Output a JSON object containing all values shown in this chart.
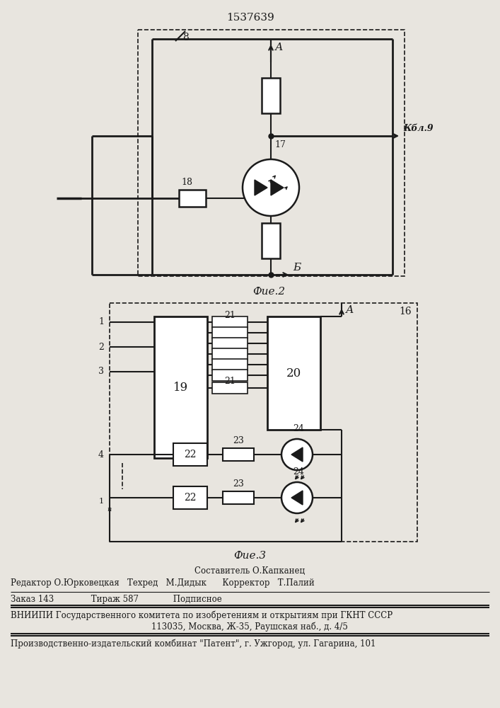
{
  "title": "1537639",
  "fig2_label": "Фие.2",
  "fig3_label": "Фие.3",
  "bg_color": "#e8e5df",
  "line_color": "#1a1a1a",
  "footer_lines": [
    "Составитель О.Капканец",
    "Редактор О.Юрковецкая   Техред   М.Дидык      Корректор   Т.Палий",
    "Заказ 143              Тираж 587             Подписное",
    "ВНИИПИ Государственного комитета по изобретениям и открытиям при ГКНТ СССР",
    "113035, Москва, Ж-35, Раушская наб., д. 4/5",
    "Производственно-издательский комбинат \"Патент\", г. Ужгород, ул. Гагарина, 101"
  ]
}
